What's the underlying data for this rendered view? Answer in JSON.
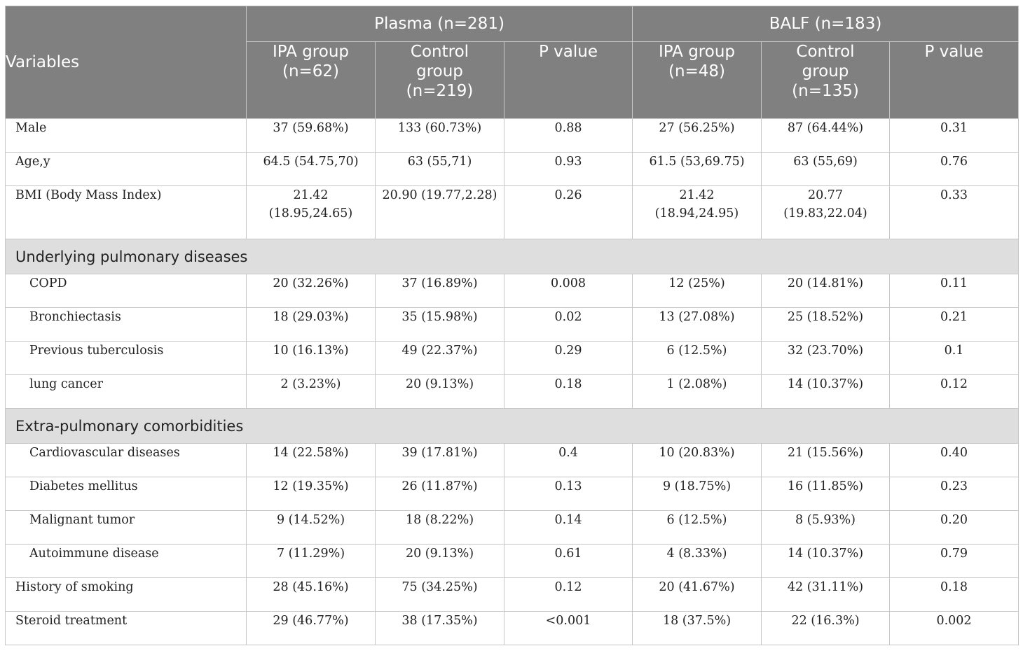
{
  "header": {
    "variables": "Variables",
    "plasma": "Plasma (n=281)",
    "balf": "BALF (n=183)",
    "plasma_ipa": [
      "IPA group",
      "(n=62)"
    ],
    "plasma_control": [
      "Control",
      "group",
      "(n=219)"
    ],
    "plasma_p": "P value",
    "balf_ipa": [
      "IPA group",
      "(n=48)"
    ],
    "balf_control": [
      "Control",
      "group",
      "(n=135)"
    ],
    "balf_p": "P value"
  },
  "rows": [
    {
      "type": "data",
      "label": "Male",
      "indent": false,
      "cells": [
        [
          "37 (59.68%)"
        ],
        [
          "133 (60.73%)"
        ],
        [
          "0.88"
        ],
        [
          "27 (56.25%)"
        ],
        [
          "87 (64.44%)"
        ],
        [
          "0.31"
        ]
      ]
    },
    {
      "type": "data",
      "label": "Age,y",
      "indent": false,
      "cells": [
        [
          "64.5 (54.75,70)"
        ],
        [
          "63 (55,71)"
        ],
        [
          "0.93"
        ],
        [
          "61.5 (53,69.75)"
        ],
        [
          "63 (55,69)"
        ],
        [
          "0.76"
        ]
      ]
    },
    {
      "type": "data",
      "label": "BMI (Body Mass Index)",
      "indent": false,
      "cells": [
        [
          "21.42",
          "(18.95,24.65)"
        ],
        [
          "20.90 (19.77,2.28)"
        ],
        [
          "0.26"
        ],
        [
          "21.42",
          "(18.94,24.95)"
        ],
        [
          "20.77",
          "(19.83,22.04)"
        ],
        [
          "0.33"
        ]
      ]
    },
    {
      "type": "section",
      "label": "Underlying pulmonary diseases"
    },
    {
      "type": "data",
      "label": "COPD",
      "indent": true,
      "cells": [
        [
          "20 (32.26%)"
        ],
        [
          "37 (16.89%)"
        ],
        [
          "0.008"
        ],
        [
          "12 (25%)"
        ],
        [
          "20 (14.81%)"
        ],
        [
          "0.11"
        ]
      ]
    },
    {
      "type": "data",
      "label": "Bronchiectasis",
      "indent": true,
      "cells": [
        [
          "18 (29.03%)"
        ],
        [
          "35 (15.98%)"
        ],
        [
          "0.02"
        ],
        [
          "13 (27.08%)"
        ],
        [
          "25 (18.52%)"
        ],
        [
          "0.21"
        ]
      ]
    },
    {
      "type": "data",
      "label": "Previous tuberculosis",
      "indent": true,
      "cells": [
        [
          "10 (16.13%)"
        ],
        [
          "49 (22.37%)"
        ],
        [
          "0.29"
        ],
        [
          "6 (12.5%)"
        ],
        [
          "32 (23.70%)"
        ],
        [
          "0.1"
        ]
      ]
    },
    {
      "type": "data",
      "label": "lung cancer",
      "indent": true,
      "cells": [
        [
          "2 (3.23%)"
        ],
        [
          "20 (9.13%)"
        ],
        [
          "0.18"
        ],
        [
          "1 (2.08%)"
        ],
        [
          "14 (10.37%)"
        ],
        [
          "0.12"
        ]
      ]
    },
    {
      "type": "section",
      "label": "Extra-pulmonary comorbidities"
    },
    {
      "type": "data",
      "label": "Cardiovascular diseases",
      "indent": true,
      "cells": [
        [
          "14 (22.58%)"
        ],
        [
          "39 (17.81%)"
        ],
        [
          "0.4"
        ],
        [
          "10 (20.83%)"
        ],
        [
          "21 (15.56%)"
        ],
        [
          "0.40"
        ]
      ]
    },
    {
      "type": "data",
      "label": "Diabetes mellitus",
      "indent": true,
      "cells": [
        [
          "12 (19.35%)"
        ],
        [
          "26 (11.87%)"
        ],
        [
          "0.13"
        ],
        [
          "9 (18.75%)"
        ],
        [
          "16 (11.85%)"
        ],
        [
          "0.23"
        ]
      ]
    },
    {
      "type": "data",
      "label": "Malignant tumor",
      "indent": true,
      "cells": [
        [
          "9 (14.52%)"
        ],
        [
          "18 (8.22%)"
        ],
        [
          "0.14"
        ],
        [
          "6 (12.5%)"
        ],
        [
          "8 (5.93%)"
        ],
        [
          "0.20"
        ]
      ]
    },
    {
      "type": "data",
      "label": "Autoimmune disease",
      "indent": true,
      "cells": [
        [
          "7 (11.29%)"
        ],
        [
          "20 (9.13%)"
        ],
        [
          "0.61"
        ],
        [
          "4 (8.33%)"
        ],
        [
          "14 (10.37%)"
        ],
        [
          "0.79"
        ]
      ]
    },
    {
      "type": "data",
      "label": "History of smoking",
      "indent": false,
      "cells": [
        [
          "28 (45.16%)"
        ],
        [
          "75 (34.25%)"
        ],
        [
          "0.12"
        ],
        [
          "20 (41.67%)"
        ],
        [
          "42 (31.11%)"
        ],
        [
          "0.18"
        ]
      ]
    },
    {
      "type": "data",
      "label": "Steroid treatment",
      "indent": false,
      "cells": [
        [
          "29 (46.77%)"
        ],
        [
          "38 (17.35%)"
        ],
        [
          "<0.001"
        ],
        [
          "18 (37.5%)"
        ],
        [
          "22 (16.3%)"
        ],
        [
          "0.002"
        ]
      ]
    }
  ]
}
